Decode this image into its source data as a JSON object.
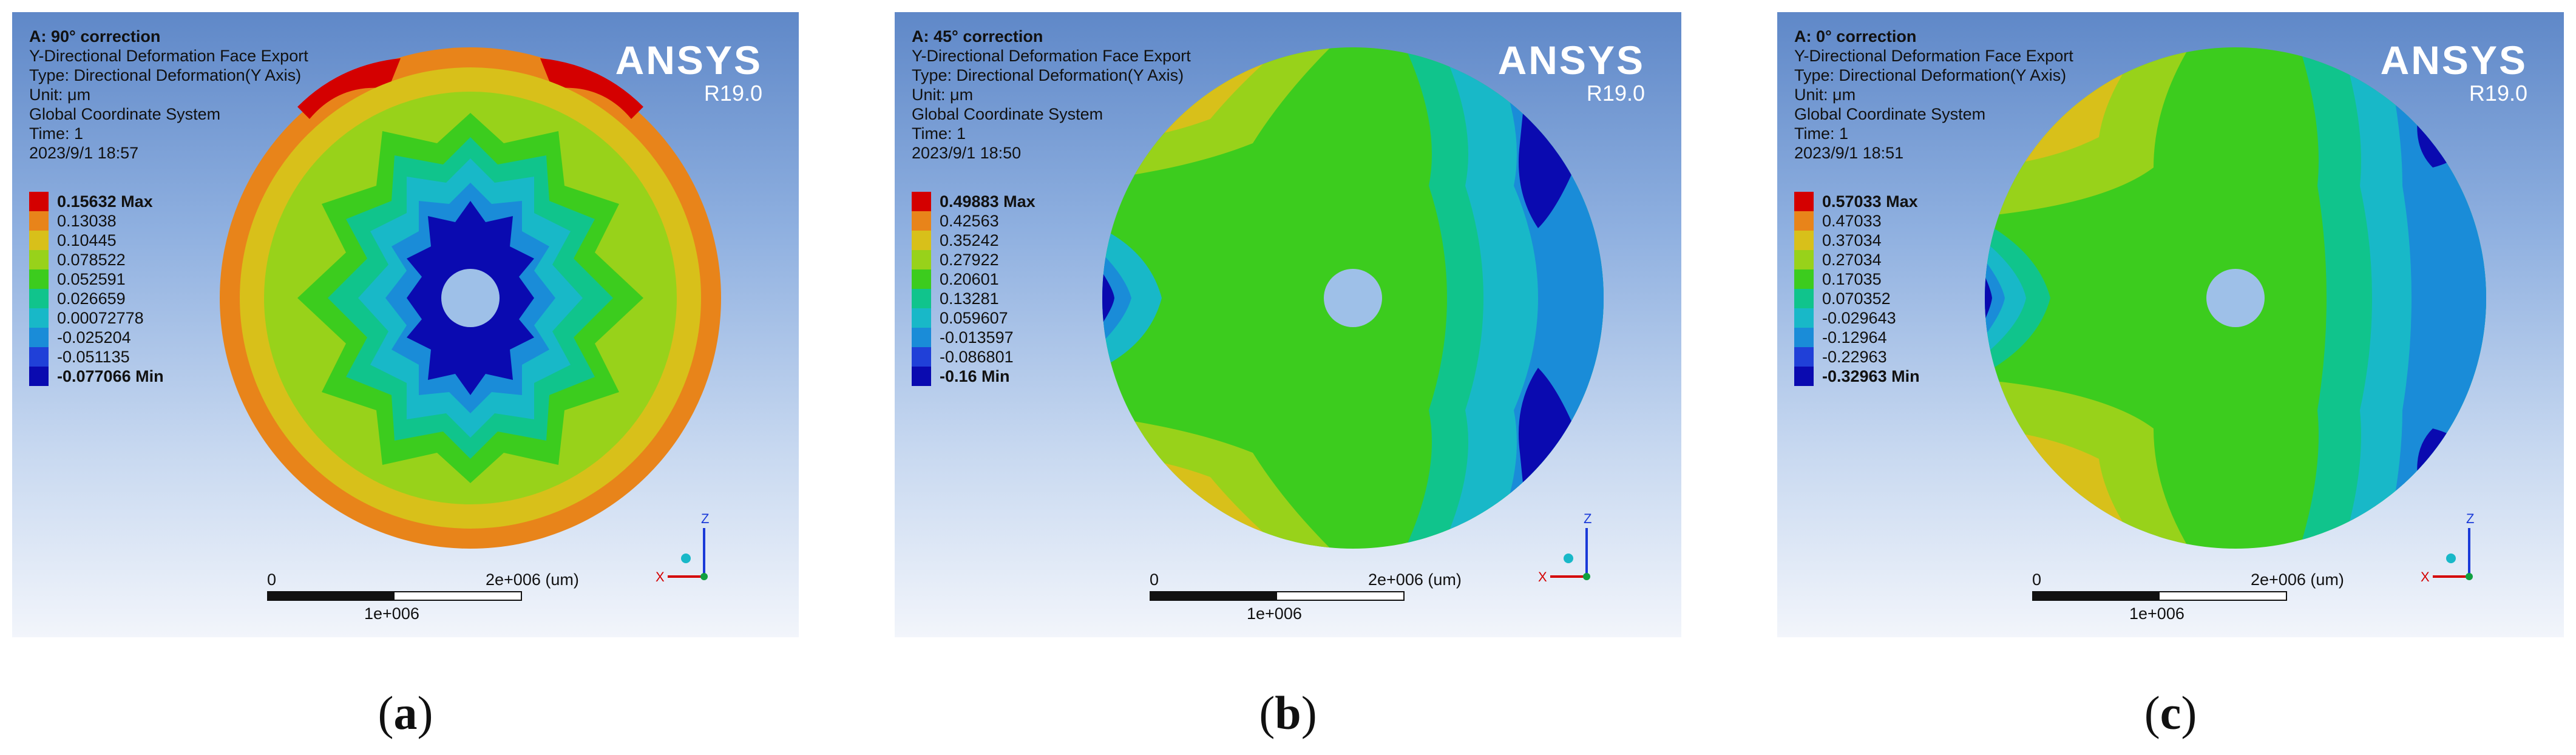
{
  "panels": [
    {
      "id": "a",
      "title": "A: 90° correction",
      "lines": [
        "Y-Directional Deformation Face Export",
        "Type: Directional Deformation(Y Axis)",
        "Unit: μm",
        "Global Coordinate System",
        "Time: 1",
        "2023/9/1 18:57"
      ],
      "legend": [
        "0.15632 Max",
        "0.13038",
        "0.10445",
        "0.078522",
        "0.052591",
        "0.026659",
        "0.00072778",
        "-0.025204",
        "-0.051135",
        "-0.077066 Min"
      ],
      "caption_label": "a"
    },
    {
      "id": "b",
      "title": "A: 45° correction",
      "lines": [
        "Y-Directional Deformation Face Export",
        "Type: Directional Deformation(Y Axis)",
        "Unit: μm",
        "Global Coordinate System",
        "Time: 1",
        "2023/9/1 18:50"
      ],
      "legend": [
        "0.49883 Max",
        "0.42563",
        "0.35242",
        "0.27922",
        "0.20601",
        "0.13281",
        "0.059607",
        "-0.013597",
        "-0.086801",
        "-0.16 Min"
      ],
      "caption_label": "b"
    },
    {
      "id": "c",
      "title": "A: 0° correction",
      "lines": [
        "Y-Directional Deformation Face Export",
        "Type: Directional Deformation(Y Axis)",
        "Unit: μm",
        "Global Coordinate System",
        "Time: 1",
        "2023/9/1 18:51"
      ],
      "legend": [
        "0.57033 Max",
        "0.47033",
        "0.37034",
        "0.27034",
        "0.17035",
        "0.070352",
        "-0.029643",
        "-0.12964",
        "-0.22963",
        "-0.32963 Min"
      ],
      "caption_label": "c"
    }
  ],
  "brand": {
    "name": "ANSYS",
    "version": "R19.0"
  },
  "scale": {
    "start": "0",
    "end": "2e+006 (um)",
    "mid": "1e+006"
  },
  "axes": {
    "z": "Z",
    "x": "X"
  },
  "colors": {
    "legend": [
      "#d40000",
      "#e8841a",
      "#d8c01a",
      "#98d21a",
      "#3ccc1e",
      "#10c48c",
      "#18b8c8",
      "#1a8cd8",
      "#2040d8",
      "#0a0ab0"
    ]
  }
}
